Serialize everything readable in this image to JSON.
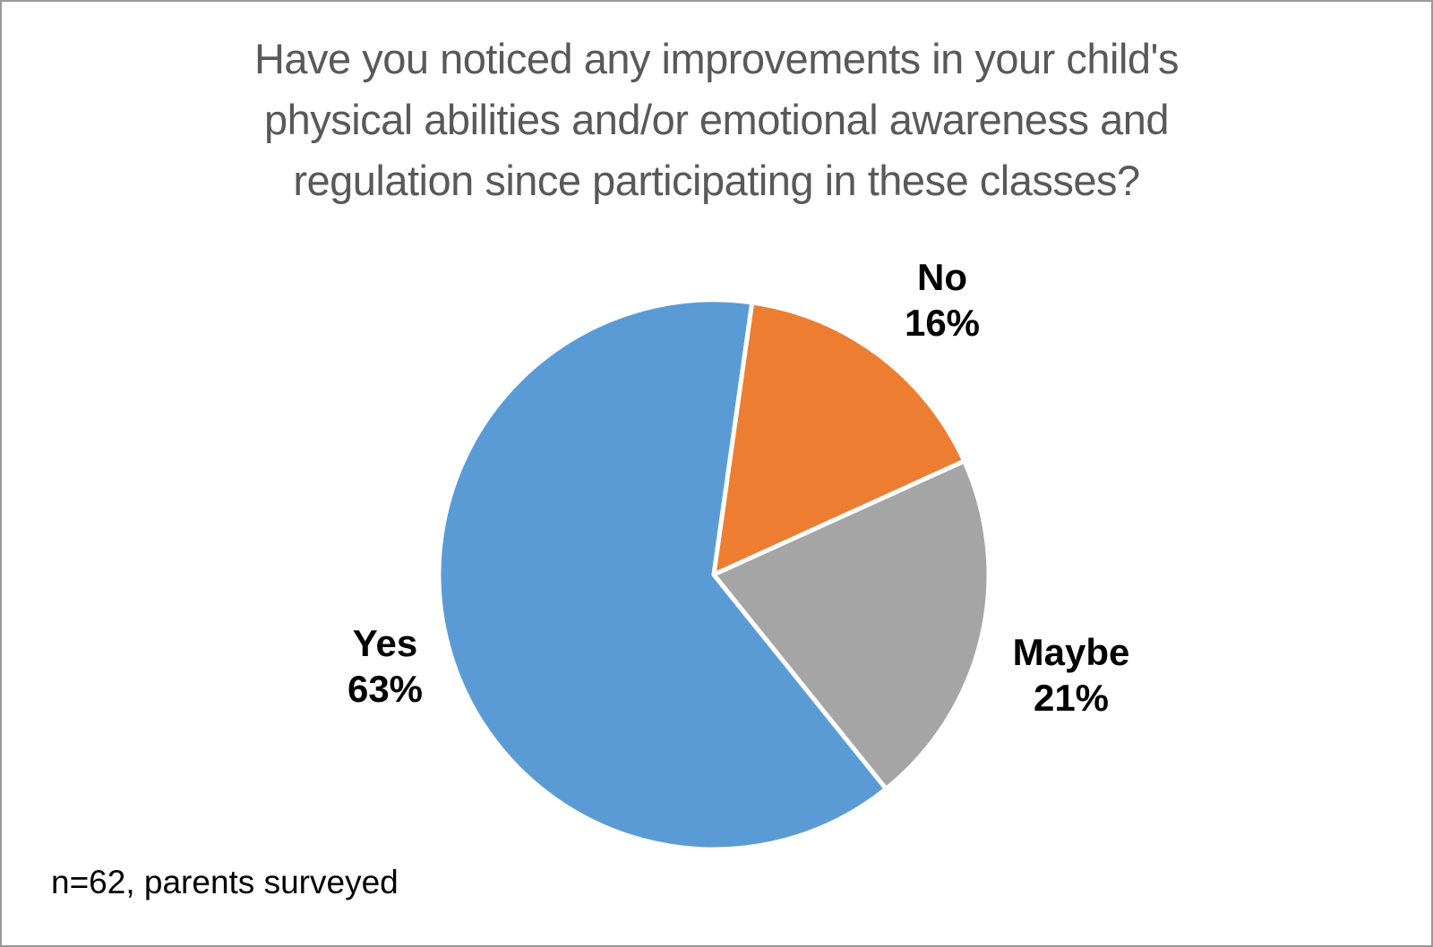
{
  "frame": {
    "background_color": "#ffffff",
    "border_color": "#999999"
  },
  "title": {
    "lines": [
      "Have you noticed any improvements in your child's",
      "physical abilities and/or emotional awareness and",
      "regulation since participating in these classes?"
    ],
    "full_text": "Have you noticed any improvements in your child's physical abilities and/or emotional awareness and regulation since participating in these classes?",
    "color": "#595959"
  },
  "footnote": "n=62, parents surveyed",
  "chart_data": {
    "type": "pie",
    "title": "Have you noticed any improvements in your child's physical abilities and/or emotional awareness and regulation since participating in these classes?",
    "categories": [
      "Yes",
      "No",
      "Maybe"
    ],
    "values": [
      63,
      16,
      21
    ],
    "unit": "%",
    "sample_note": "n=62, parents surveyed",
    "legend_position": "none",
    "label_style": "category name + percentage outside slice",
    "first_slice_angle_deg": 141.2,
    "separator_color": "#ffffff",
    "slices": [
      {
        "label": "Yes",
        "value": 63,
        "pct_text": "63%",
        "color": "#5B9BD5"
      },
      {
        "label": "No",
        "value": 16,
        "pct_text": "16%",
        "color": "#ED7D31"
      },
      {
        "label": "Maybe",
        "value": 21,
        "pct_text": "21%",
        "color": "#A5A5A5"
      }
    ]
  }
}
